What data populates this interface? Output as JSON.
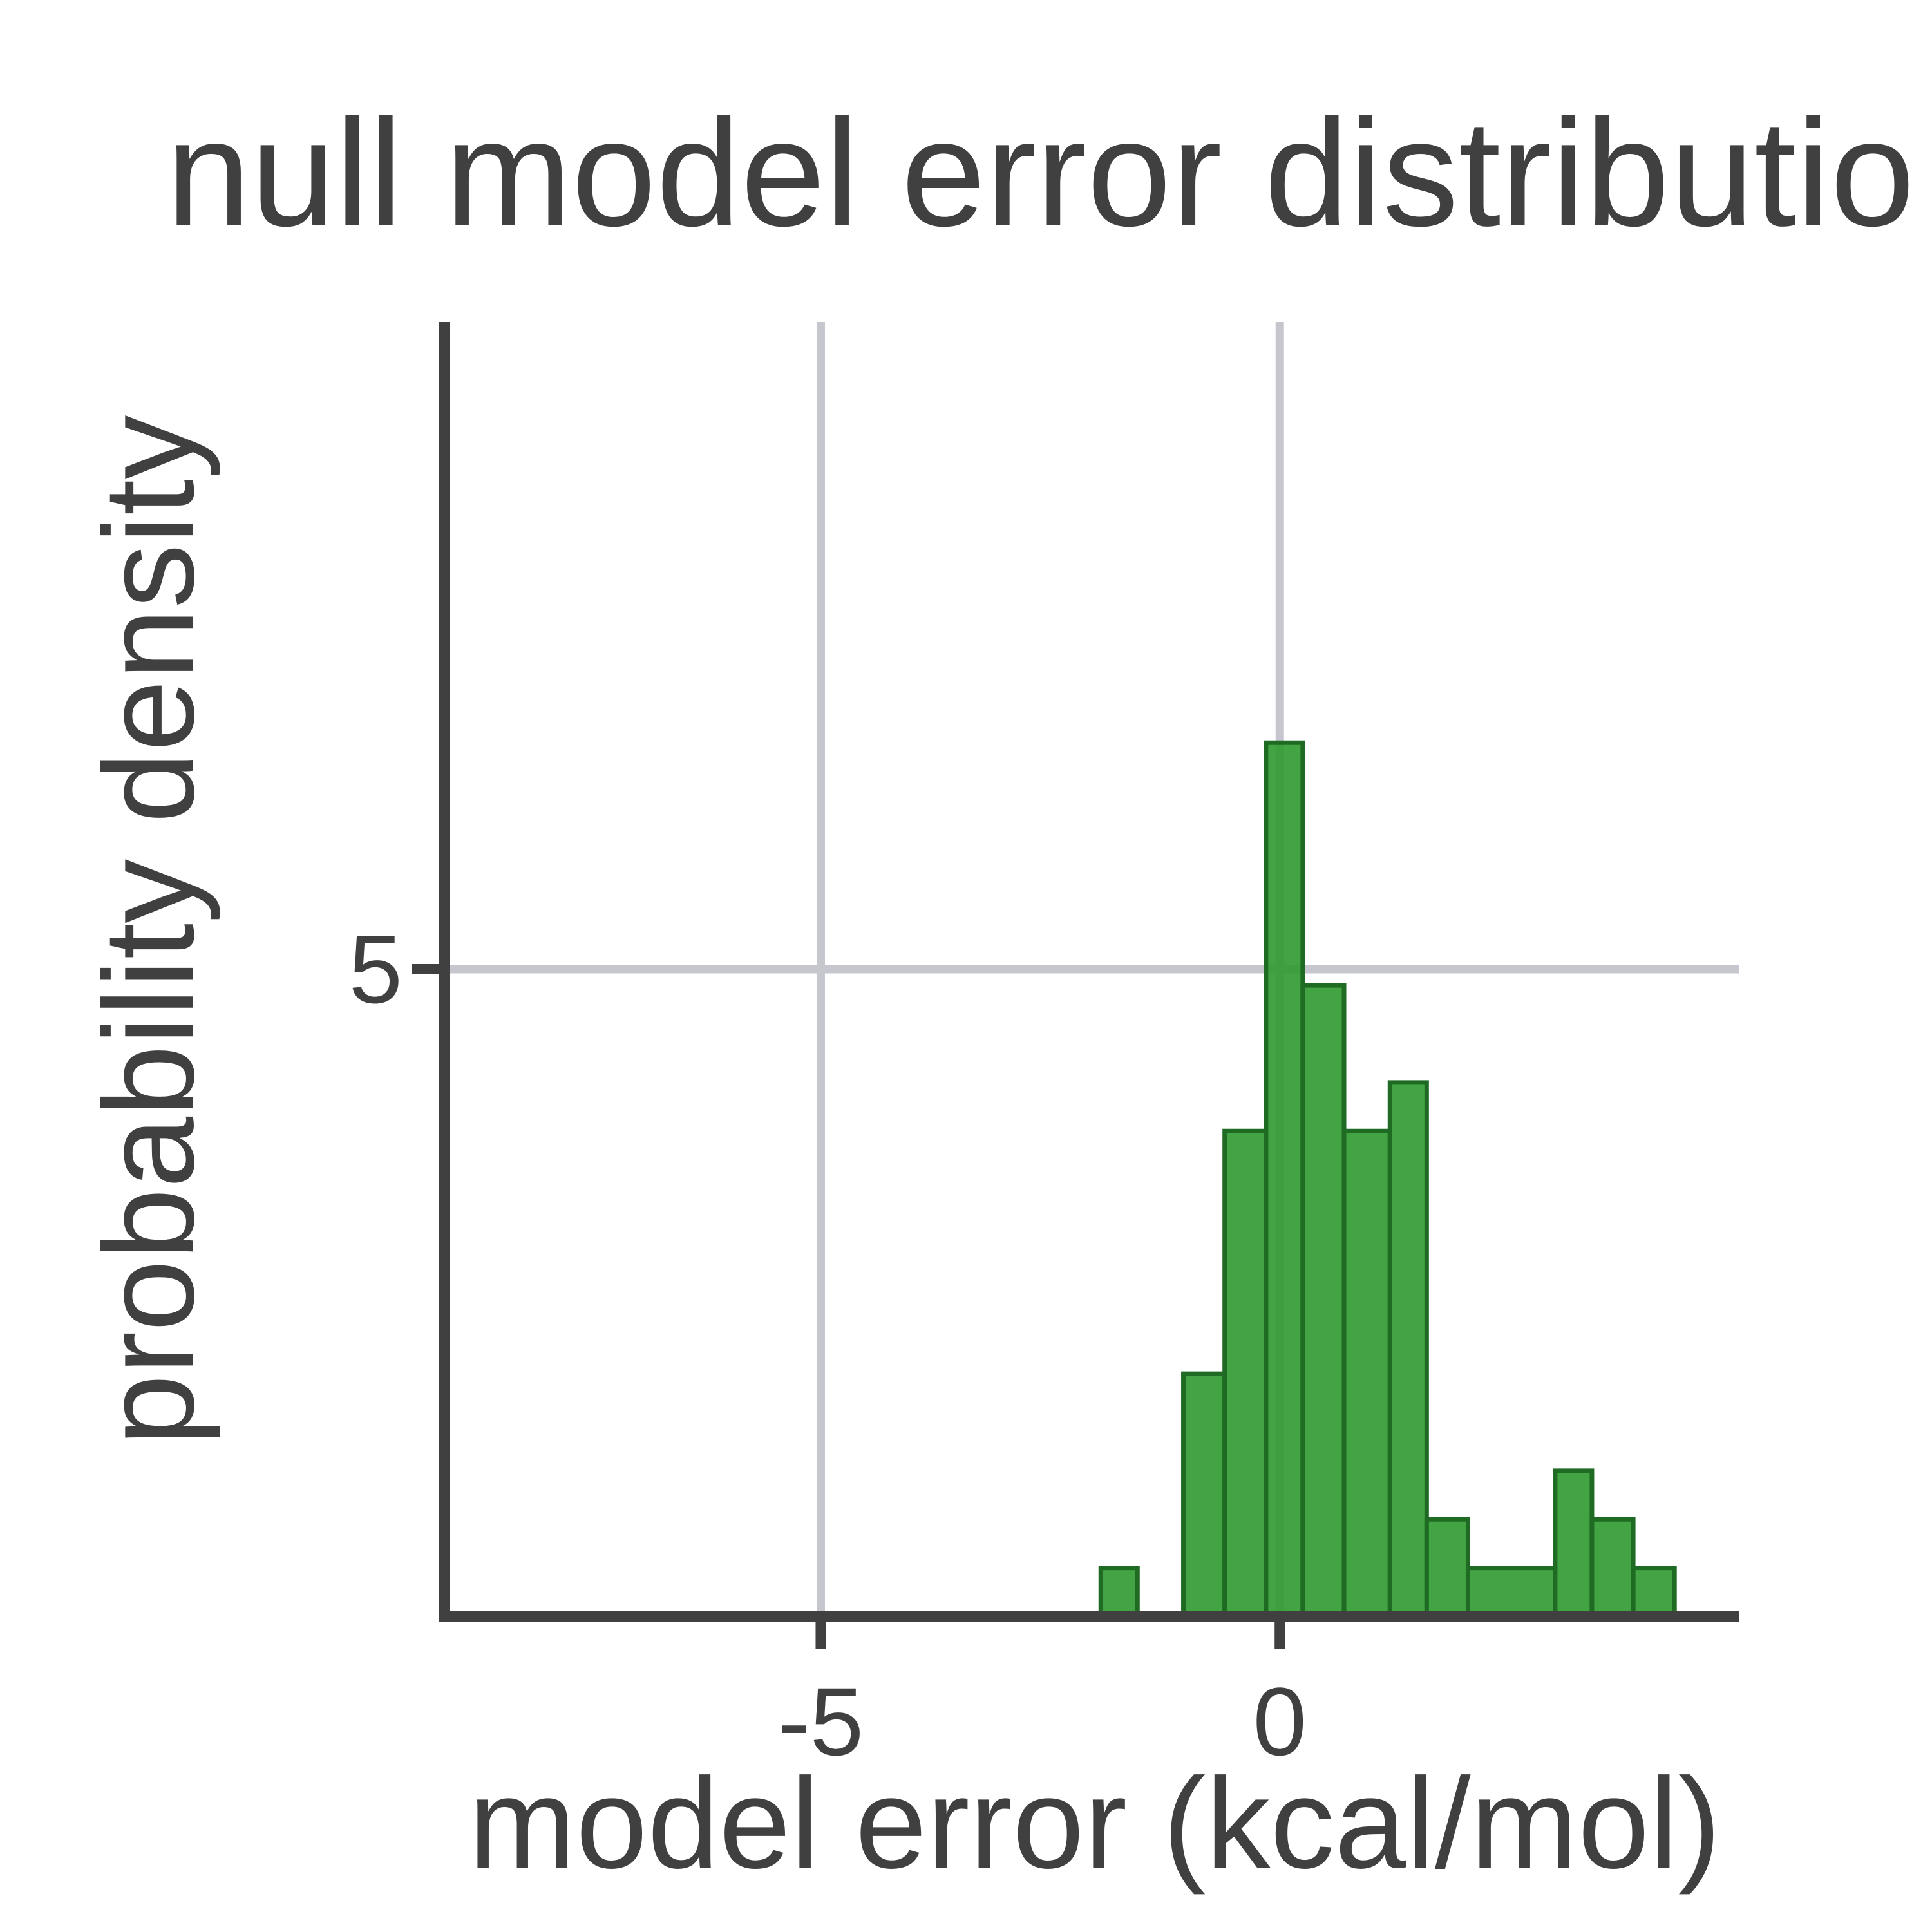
{
  "chart_data": {
    "type": "histogram",
    "title": "null model error distributio",
    "xlabel": "model error (kcal/mol)",
    "ylabel": "probability density",
    "xlim": [
      -9.1,
      5
    ],
    "ylim": [
      0,
      10
    ],
    "xticks": [
      {
        "value": -5,
        "label": "-5"
      },
      {
        "value": 0,
        "label": "0"
      }
    ],
    "yticks": [
      {
        "value": 5,
        "label": "5"
      }
    ],
    "grid": true,
    "bins": [
      {
        "x0": -1.95,
        "x1": -1.55,
        "density": 0.375
      },
      {
        "x0": -1.05,
        "x1": -0.6,
        "density": 1.875
      },
      {
        "x0": -0.6,
        "x1": -0.15,
        "density": 3.75
      },
      {
        "x0": -0.15,
        "x1": 0.25,
        "density": 6.75
      },
      {
        "x0": 0.25,
        "x1": 0.7,
        "density": 4.875
      },
      {
        "x0": 0.7,
        "x1": 1.2,
        "density": 3.75
      },
      {
        "x0": 1.2,
        "x1": 1.6,
        "density": 4.125
      },
      {
        "x0": 1.6,
        "x1": 2.05,
        "density": 0.75
      },
      {
        "x0": 2.05,
        "x1": 3.0,
        "density": 0.375
      },
      {
        "x0": 3.0,
        "x1": 3.4,
        "density": 1.125
      },
      {
        "x0": 3.4,
        "x1": 3.85,
        "density": 0.75
      },
      {
        "x0": 3.85,
        "x1": 4.3,
        "density": 0.375
      }
    ],
    "fill_color": "#2e9a2e",
    "edge_color": "#1f6b23"
  }
}
